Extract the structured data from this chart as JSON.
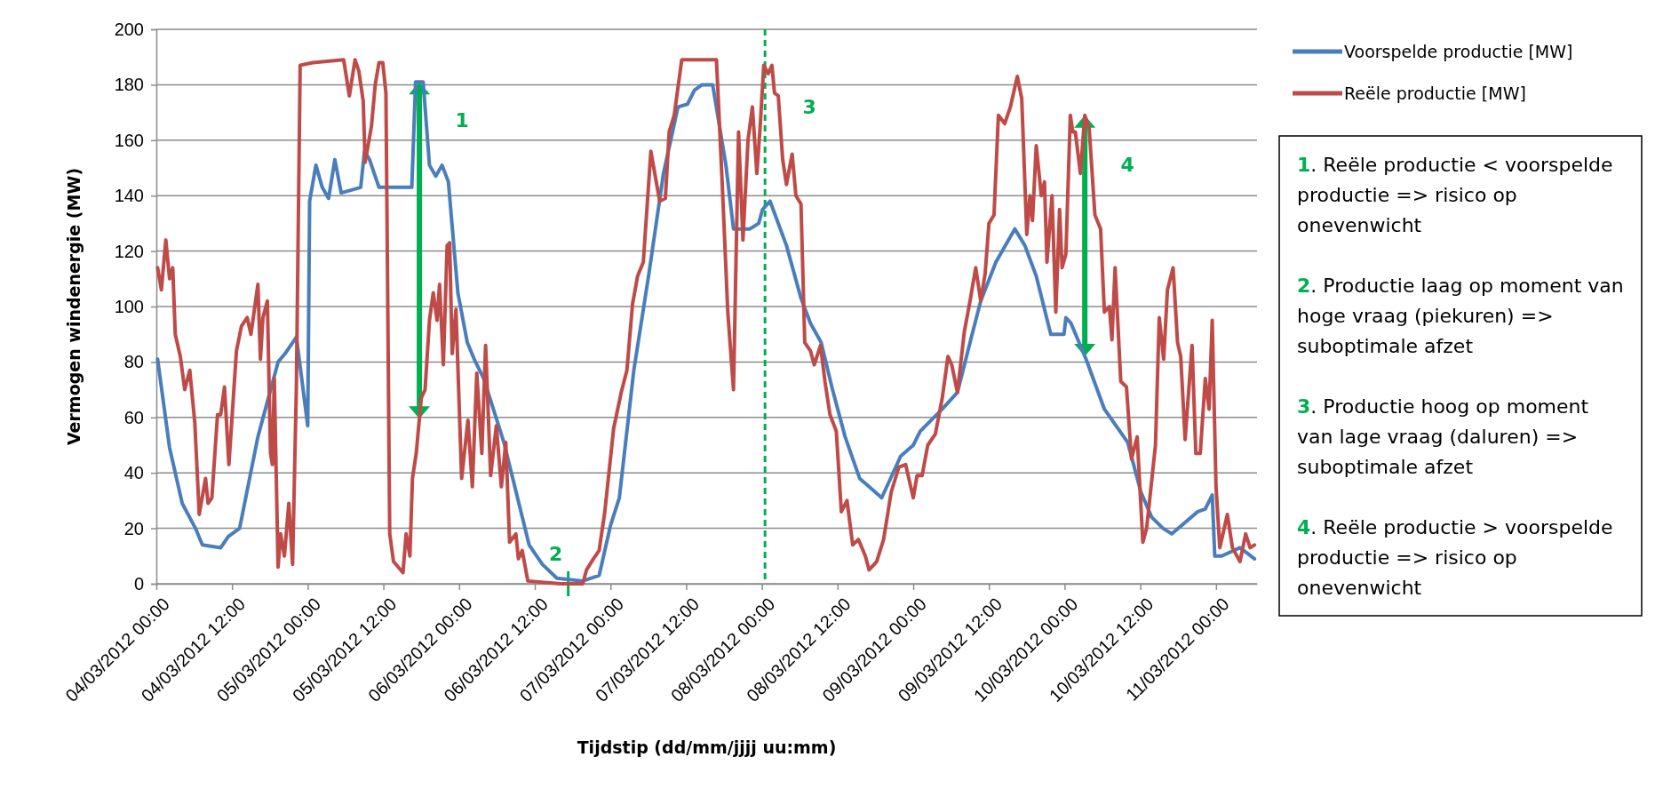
{
  "chart_data": {
    "type": "line",
    "xlabel": "Tijdstip (dd/mm/jjjj uu:mm)",
    "ylabel": "Vermogen windenergie (MW)",
    "xlim": [
      "2012-03-04T00:00",
      "2012-03-11T06:30"
    ],
    "xticks": [
      {
        "value": "2012-03-04T00:00",
        "label": "04/03/2012 00:00"
      },
      {
        "value": "2012-03-04T12:00",
        "label": "04/03/2012 12:00"
      },
      {
        "value": "2012-03-05T00:00",
        "label": "05/03/2012 00:00"
      },
      {
        "value": "2012-03-05T12:00",
        "label": "05/03/2012 12:00"
      },
      {
        "value": "2012-03-06T00:00",
        "label": "06/03/2012 00:00"
      },
      {
        "value": "2012-03-06T12:00",
        "label": "06/03/2012 12:00"
      },
      {
        "value": "2012-03-07T00:00",
        "label": "07/03/2012 00:00"
      },
      {
        "value": "2012-03-07T12:00",
        "label": "07/03/2012 12:00"
      },
      {
        "value": "2012-03-08T00:00",
        "label": "08/03/2012 00:00"
      },
      {
        "value": "2012-03-08T12:00",
        "label": "08/03/2012 12:00"
      },
      {
        "value": "2012-03-09T00:00",
        "label": "09/03/2012 00:00"
      },
      {
        "value": "2012-03-09T12:00",
        "label": "09/03/2012 12:00"
      },
      {
        "value": "2012-03-10T00:00",
        "label": "10/03/2012 00:00"
      },
      {
        "value": "2012-03-10T12:00",
        "label": "10/03/2012 12:00"
      },
      {
        "value": "2012-03-11T00:00",
        "label": "11/03/2012 00:00"
      }
    ],
    "ylim": [
      0,
      200
    ],
    "yticks": [
      0,
      20,
      40,
      60,
      80,
      100,
      120,
      140,
      160,
      180,
      200
    ],
    "grid": "y",
    "legend": "top right",
    "marker": "none",
    "line_style": "solid",
    "series": [
      {
        "name": "Voorspelde productie [MW]",
        "color": "#4a7ebb",
        "x": [
          "2012-03-04T00:12",
          "2012-03-04T02:06",
          "2012-03-04T04:06",
          "2012-03-04T06:12",
          "2012-03-04T07:18",
          "2012-03-04T10:12",
          "2012-03-04T11:24",
          "2012-03-04T13:12",
          "2012-03-04T16:06",
          "2012-03-04T19:18",
          "2012-03-04T20:24",
          "2012-03-04T22:12",
          "2012-03-05T00:00",
          "2012-03-05T00:18",
          "2012-03-05T01:18",
          "2012-03-05T02:18",
          "2012-03-05T03:18",
          "2012-03-05T04:18",
          "2012-03-05T05:18",
          "2012-03-05T08:24",
          "2012-03-05T09:00",
          "2012-03-05T09:48",
          "2012-03-05T11:18",
          "2012-03-05T13:00",
          "2012-03-05T16:30",
          "2012-03-05T17:06",
          "2012-03-05T18:18",
          "2012-03-05T19:18",
          "2012-03-05T20:18",
          "2012-03-05T21:18",
          "2012-03-05T22:18",
          "2012-03-05T23:48",
          "2012-03-06T01:18",
          "2012-03-06T02:24",
          "2012-03-06T03:54",
          "2012-03-06T07:06",
          "2012-03-06T11:06",
          "2012-03-06T13:12",
          "2012-03-06T15:30",
          "2012-03-06T19:36",
          "2012-03-06T22:12",
          "2012-03-07T00:00",
          "2012-03-07T01:24",
          "2012-03-07T03:42",
          "2012-03-07T06:06",
          "2012-03-07T08:24",
          "2012-03-07T10:42",
          "2012-03-07T12:12",
          "2012-03-07T13:18",
          "2012-03-07T14:30",
          "2012-03-07T16:12",
          "2012-03-07T18:18",
          "2012-03-07T19:30",
          "2012-03-07T22:06",
          "2012-03-07T23:30",
          "2012-03-08T00:06",
          "2012-03-08T01:18",
          "2012-03-08T03:54",
          "2012-03-08T06:12",
          "2012-03-08T07:42",
          "2012-03-08T09:24",
          "2012-03-08T11:12",
          "2012-03-08T13:12",
          "2012-03-08T15:30",
          "2012-03-08T17:00",
          "2012-03-08T19:00",
          "2012-03-08T22:00",
          "2012-03-09T00:00",
          "2012-03-09T01:06",
          "2012-03-09T04:36",
          "2012-03-09T07:00",
          "2012-03-09T09:00",
          "2012-03-09T10:42",
          "2012-03-09T13:06",
          "2012-03-09T16:06",
          "2012-03-09T17:42",
          "2012-03-09T19:30",
          "2012-03-09T21:48",
          "2012-03-09T23:54",
          "2012-03-10T00:12",
          "2012-03-10T01:00",
          "2012-03-10T03:24",
          "2012-03-10T06:18",
          "2012-03-10T10:00",
          "2012-03-10T12:06",
          "2012-03-10T13:48",
          "2012-03-10T15:36",
          "2012-03-10T17:00",
          "2012-03-10T21:06",
          "2012-03-10T22:18",
          "2012-03-10T23:24",
          "2012-03-10T23:48",
          "2012-03-11T00:54",
          "2012-03-11T03:48",
          "2012-03-11T06:06"
        ],
        "values": [
          81,
          49,
          29,
          20,
          14,
          13,
          17,
          20,
          53,
          80,
          83,
          89,
          57,
          138,
          151,
          143,
          139,
          153,
          141,
          143,
          156,
          153,
          143,
          143,
          143,
          181,
          181,
          151,
          147,
          151,
          145,
          105,
          87,
          81,
          74,
          51,
          14,
          7,
          2,
          1,
          3,
          21,
          31,
          77,
          112,
          148,
          172,
          173,
          178,
          180,
          180,
          151,
          128,
          128,
          130,
          135,
          138,
          122,
          103,
          94,
          87,
          70,
          53,
          38,
          35,
          31,
          46,
          50,
          55,
          63,
          69,
          87,
          102,
          116,
          128,
          122,
          111,
          90,
          90,
          96,
          94,
          81,
          63,
          51,
          33,
          24,
          20,
          18,
          26,
          27,
          32,
          10,
          10,
          13,
          9
        ]
      },
      {
        "name": "Reële productie [MW]",
        "color": "#be4b48",
        "x": [
          "2012-03-04T00:12",
          "2012-03-04T00:48",
          "2012-03-04T01:30",
          "2012-03-04T02:06",
          "2012-03-04T02:36",
          "2012-03-04T03:00",
          "2012-03-04T03:48",
          "2012-03-04T04:30",
          "2012-03-04T05:18",
          "2012-03-04T06:06",
          "2012-03-04T06:48",
          "2012-03-04T07:48",
          "2012-03-04T08:12",
          "2012-03-04T08:48",
          "2012-03-04T09:42",
          "2012-03-04T10:12",
          "2012-03-04T10:48",
          "2012-03-04T11:30",
          "2012-03-04T12:42",
          "2012-03-04T13:30",
          "2012-03-04T14:24",
          "2012-03-04T15:00",
          "2012-03-04T16:06",
          "2012-03-04T16:30",
          "2012-03-04T16:54",
          "2012-03-04T17:36",
          "2012-03-04T18:06",
          "2012-03-04T18:24",
          "2012-03-04T18:42",
          "2012-03-04T19:18",
          "2012-03-04T19:42",
          "2012-03-04T20:18",
          "2012-03-04T21:00",
          "2012-03-04T21:36",
          "2012-03-04T22:12",
          "2012-03-04T22:48",
          "2012-03-05T00:48",
          "2012-03-05T05:42",
          "2012-03-05T06:36",
          "2012-03-05T07:30",
          "2012-03-05T08:06",
          "2012-03-05T08:48",
          "2012-03-05T09:06",
          "2012-03-05T10:06",
          "2012-03-05T10:42",
          "2012-03-05T11:18",
          "2012-03-05T11:54",
          "2012-03-05T12:24",
          "2012-03-05T13:00",
          "2012-03-05T13:36",
          "2012-03-05T15:06",
          "2012-03-05T15:36",
          "2012-03-05T16:12",
          "2012-03-05T16:36",
          "2012-03-05T17:12",
          "2012-03-05T18:00",
          "2012-03-05T18:36",
          "2012-03-05T19:18",
          "2012-03-05T19:54",
          "2012-03-05T20:30",
          "2012-03-05T20:54",
          "2012-03-05T21:30",
          "2012-03-05T22:06",
          "2012-03-05T22:30",
          "2012-03-05T22:54",
          "2012-03-05T23:30",
          "2012-03-06T00:24",
          "2012-03-06T01:24",
          "2012-03-06T02:06",
          "2012-03-06T02:48",
          "2012-03-06T03:36",
          "2012-03-06T04:12",
          "2012-03-06T05:00",
          "2012-03-06T05:54",
          "2012-03-06T06:42",
          "2012-03-06T07:24",
          "2012-03-06T08:00",
          "2012-03-06T09:00",
          "2012-03-06T09:24",
          "2012-03-06T10:00",
          "2012-03-06T10:54",
          "2012-03-06T16:06",
          "2012-03-06T19:36",
          "2012-03-06T20:12",
          "2012-03-06T21:18",
          "2012-03-06T22:12",
          "2012-03-06T23:06",
          "2012-03-07T00:30",
          "2012-03-07T01:42",
          "2012-03-07T02:36",
          "2012-03-07T03:30",
          "2012-03-07T04:18",
          "2012-03-07T05:12",
          "2012-03-07T06:24",
          "2012-03-07T07:48",
          "2012-03-07T08:42",
          "2012-03-07T09:18",
          "2012-03-07T10:06",
          "2012-03-07T11:18",
          "2012-03-07T14:12",
          "2012-03-07T16:48",
          "2012-03-07T17:42",
          "2012-03-07T18:36",
          "2012-03-07T19:30",
          "2012-03-07T20:18",
          "2012-03-07T21:00",
          "2012-03-07T21:48",
          "2012-03-07T22:30",
          "2012-03-07T23:12",
          "2012-03-07T23:42",
          "2012-03-08T00:18",
          "2012-03-08T01:00",
          "2012-03-08T01:36",
          "2012-03-08T02:00",
          "2012-03-08T02:36",
          "2012-03-08T03:18",
          "2012-03-08T03:54",
          "2012-03-08T04:48",
          "2012-03-08T05:24",
          "2012-03-08T06:12",
          "2012-03-08T06:48",
          "2012-03-08T07:42",
          "2012-03-08T08:18",
          "2012-03-08T09:18",
          "2012-03-08T10:00",
          "2012-03-08T10:48",
          "2012-03-08T11:48",
          "2012-03-08T12:36",
          "2012-03-08T13:30",
          "2012-03-08T14:24",
          "2012-03-08T15:18",
          "2012-03-08T16:24",
          "2012-03-08T17:00",
          "2012-03-08T18:12",
          "2012-03-08T19:18",
          "2012-03-08T20:30",
          "2012-03-08T21:42",
          "2012-03-08T22:48",
          "2012-03-09T00:00",
          "2012-03-09T00:36",
          "2012-03-09T01:24",
          "2012-03-09T02:18",
          "2012-03-09T03:30",
          "2012-03-09T04:36",
          "2012-03-09T05:30",
          "2012-03-09T06:06",
          "2012-03-09T07:00",
          "2012-03-09T08:06",
          "2012-03-09T09:00",
          "2012-03-09T09:54",
          "2012-03-09T10:42",
          "2012-03-09T11:24",
          "2012-03-09T12:00",
          "2012-03-09T12:48",
          "2012-03-09T13:30",
          "2012-03-09T14:30",
          "2012-03-09T15:24",
          "2012-03-09T16:30",
          "2012-03-09T17:12",
          "2012-03-09T18:00",
          "2012-03-09T18:30",
          "2012-03-09T18:54",
          "2012-03-09T19:30",
          "2012-03-09T20:18",
          "2012-03-09T20:48",
          "2012-03-09T21:12",
          "2012-03-09T22:00",
          "2012-03-09T22:36",
          "2012-03-09T23:12",
          "2012-03-09T23:36",
          "2012-03-10T00:12",
          "2012-03-10T00:54",
          "2012-03-10T01:18",
          "2012-03-10T01:42",
          "2012-03-10T02:30",
          "2012-03-10T03:12",
          "2012-03-10T03:54",
          "2012-03-10T04:48",
          "2012-03-10T05:42",
          "2012-03-10T06:18",
          "2012-03-10T07:06",
          "2012-03-10T07:30",
          "2012-03-10T08:00",
          "2012-03-10T08:54",
          "2012-03-10T09:48",
          "2012-03-10T10:36",
          "2012-03-10T11:30",
          "2012-03-10T12:24",
          "2012-03-10T13:00",
          "2012-03-10T14:24",
          "2012-03-10T15:00",
          "2012-03-10T15:42",
          "2012-03-10T16:18",
          "2012-03-10T17:12",
          "2012-03-10T17:54",
          "2012-03-10T18:24",
          "2012-03-10T19:06",
          "2012-03-10T20:12",
          "2012-03-10T20:48",
          "2012-03-10T21:30",
          "2012-03-10T22:18",
          "2012-03-10T22:54",
          "2012-03-10T23:24",
          "2012-03-11T00:00",
          "2012-03-11T00:36",
          "2012-03-11T01:48",
          "2012-03-11T02:36",
          "2012-03-11T03:48",
          "2012-03-11T04:42",
          "2012-03-11T05:24",
          "2012-03-11T06:06"
        ],
        "values": [
          114,
          106,
          124,
          110,
          114,
          90,
          82,
          70,
          77,
          58,
          25,
          38,
          29,
          31,
          61,
          61,
          71,
          43,
          84,
          93,
          96,
          90,
          108,
          81,
          96,
          102,
          47,
          43,
          74,
          6,
          18,
          10,
          29,
          7,
          71,
          187,
          188,
          189,
          176,
          189,
          185,
          174,
          152,
          165,
          180,
          188,
          188,
          177,
          18,
          8,
          4,
          18,
          10,
          38,
          47,
          67,
          70,
          95,
          105,
          95,
          108,
          79,
          122,
          123,
          83,
          99,
          38,
          59,
          35,
          76,
          47,
          86,
          39,
          57,
          35,
          51,
          15,
          18,
          9,
          12,
          1,
          0,
          0,
          5,
          9,
          12,
          26,
          56,
          69,
          77,
          101,
          111,
          116,
          156,
          138,
          139,
          163,
          169,
          189,
          189,
          189,
          145,
          98,
          70,
          163,
          124,
          160,
          172,
          148,
          164,
          187,
          184,
          187,
          177,
          176,
          153,
          144,
          155,
          140,
          137,
          87,
          84,
          79,
          86,
          73,
          61,
          55,
          26,
          30,
          14,
          16,
          10,
          5,
          8,
          16,
          33,
          42,
          43,
          31,
          39,
          39,
          50,
          54,
          67,
          82,
          79,
          69,
          91,
          102,
          114,
          102,
          112,
          130,
          133,
          169,
          166,
          172,
          183,
          175,
          126,
          140,
          131,
          158,
          140,
          145,
          116,
          140,
          98,
          135,
          114,
          119,
          169,
          163,
          163,
          148,
          169,
          164,
          133,
          128,
          98,
          100,
          88,
          114,
          73,
          71,
          45,
          53,
          15,
          20,
          50,
          96,
          81,
          106,
          114,
          87,
          82,
          52,
          86,
          47,
          47,
          74,
          63,
          95,
          35,
          13,
          25,
          13,
          8,
          18,
          13,
          14
        ]
      }
    ],
    "ref_lines": [
      {
        "axis": "x",
        "value": "2012-03-08T00:30",
        "color": "#00b050",
        "line_style": "dashed"
      }
    ],
    "annotations": [
      {
        "text": "1",
        "x": "2012-03-05T17:42",
        "y": 180
      },
      {
        "text": "2",
        "x": "2012-03-06T17:18",
        "y": 0
      },
      {
        "text": "3",
        "x": "2012-03-08T00:30",
        "y": 185
      },
      {
        "text": "4",
        "x": "2012-03-10T03:12",
        "y": 164
      },
      "1. Reële productie < voorspelde productie => risico op onevenwicht",
      "2. Productie laag op moment van hoge vraag (piekuren) => suboptimale afzet",
      "3. Productie hoog op moment van lage vraag (daluren) => suboptimale afzet",
      "4. Reële productie > voorspelde productie => risico op onevenwicht"
    ]
  }
}
